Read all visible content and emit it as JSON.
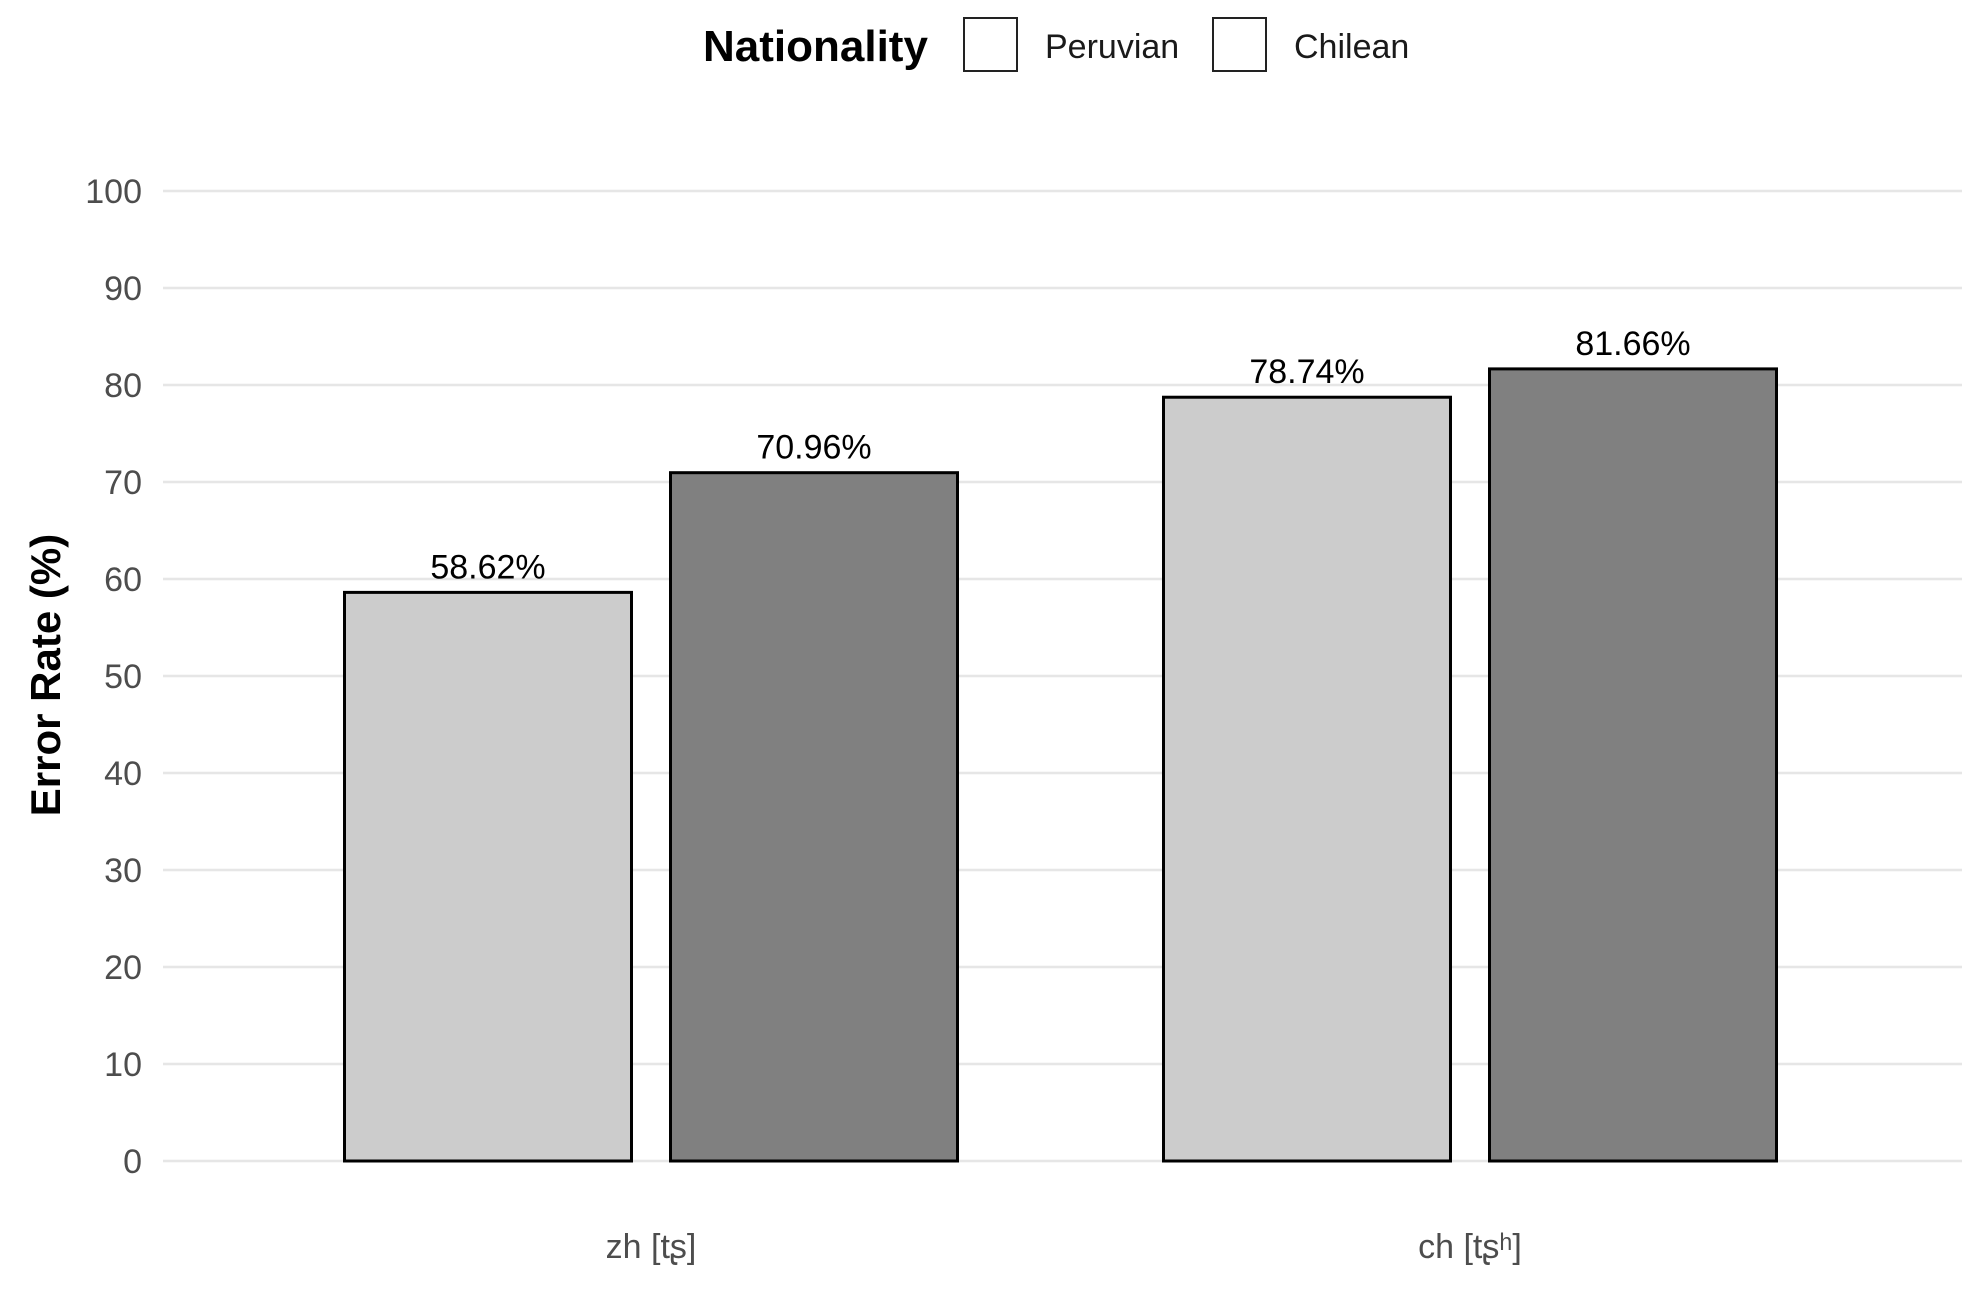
{
  "chart_data": {
    "type": "bar",
    "categories": [
      "zh [tʂ]",
      "ch [tʂʰ]"
    ],
    "series": [
      {
        "name": "Peruvian",
        "values": [
          58.62,
          78.74
        ],
        "color": "#cccccc"
      },
      {
        "name": "Chilean",
        "values": [
          70.96,
          81.66
        ],
        "color": "#808080"
      }
    ],
    "data_labels": [
      [
        "58.62%",
        "78.74%"
      ],
      [
        "70.96%",
        "81.66%"
      ]
    ],
    "xlabel": "",
    "ylabel": "Error Rate (%)",
    "ylim": [
      0,
      100
    ],
    "yticks": [
      "0",
      "10",
      "20",
      "30",
      "40",
      "50",
      "60",
      "70",
      "80",
      "90",
      "100"
    ],
    "legend": {
      "title": "Nationality",
      "position": "top"
    },
    "grid": true
  }
}
